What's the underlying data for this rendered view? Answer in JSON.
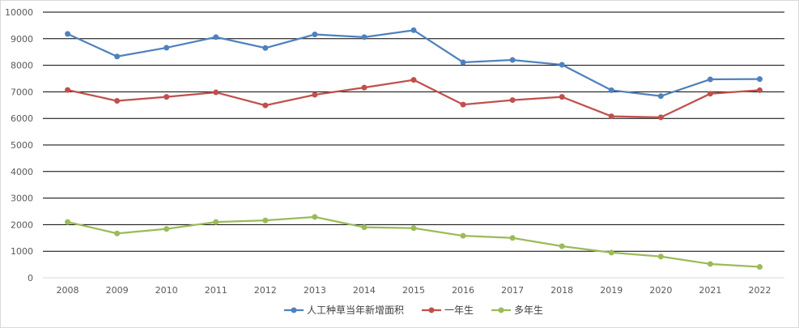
{
  "chart_data": {
    "type": "line",
    "categories": [
      "2008",
      "2009",
      "2010",
      "2011",
      "2012",
      "2013",
      "2014",
      "2015",
      "2016",
      "2017",
      "2018",
      "2019",
      "2020",
      "2021",
      "2022"
    ],
    "ylim": [
      0,
      10000
    ],
    "yticks": [
      "0",
      "1000",
      "2000",
      "3000",
      "4000",
      "5000",
      "6000",
      "7000",
      "8000",
      "9000",
      "10000"
    ],
    "grid": true,
    "legend_position": "bottom",
    "series": [
      {
        "name": "人工种草当年新增面积",
        "color": "#4f81bd",
        "values": [
          9180,
          8330,
          8660,
          9060,
          8650,
          9160,
          9060,
          9320,
          8110,
          8200,
          8020,
          7060,
          6840,
          7470,
          7480
        ]
      },
      {
        "name": "一年生",
        "color": "#c0504d",
        "values": [
          7070,
          6660,
          6810,
          6980,
          6490,
          6890,
          7160,
          7450,
          6520,
          6690,
          6810,
          6080,
          6040,
          6930,
          7060
        ]
      },
      {
        "name": "多年生",
        "color": "#9bbb59",
        "values": [
          2100,
          1670,
          1840,
          2100,
          2160,
          2290,
          1900,
          1870,
          1580,
          1500,
          1190,
          950,
          800,
          520,
          410
        ]
      }
    ]
  }
}
